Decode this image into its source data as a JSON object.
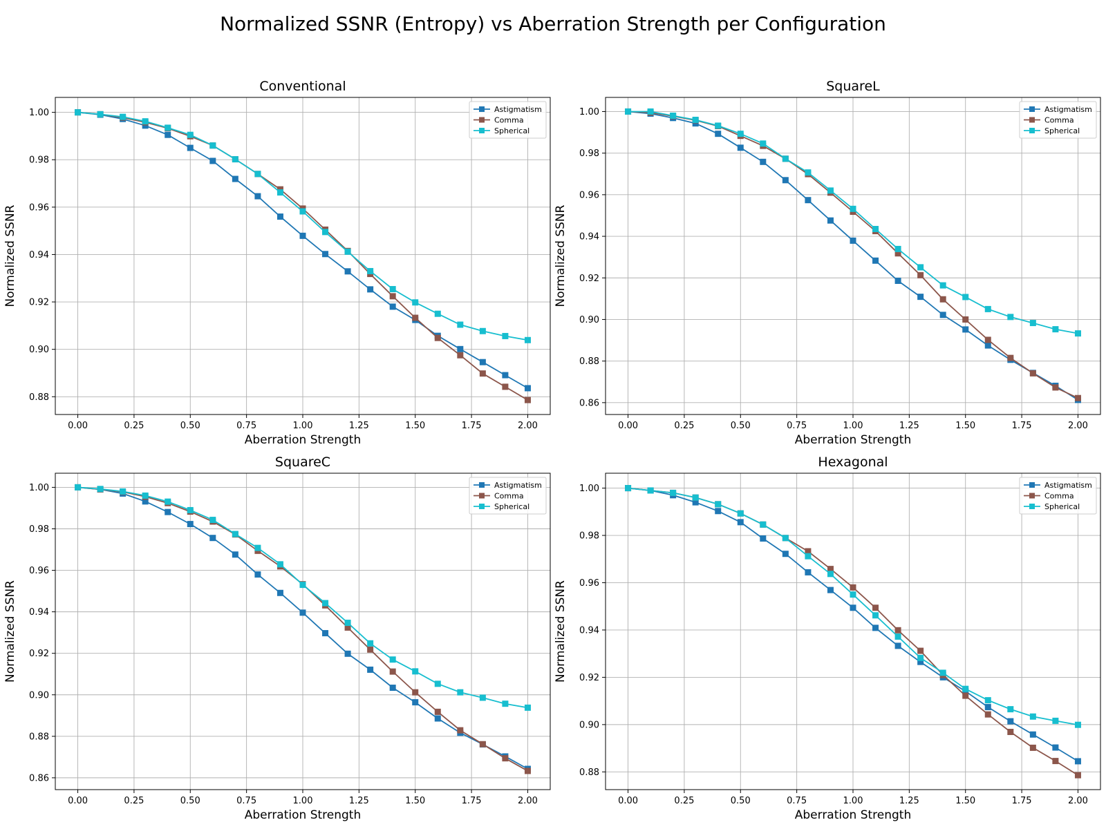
{
  "figure": {
    "title": "Normalized SSNR (Entropy) vs Aberration Strength per Configuration"
  },
  "colors": {
    "Astigmatism": "#1f77b4",
    "Comma": "#8c564b",
    "Spherical": "#17becf",
    "grid": "#b0b0b0"
  },
  "chart_data": [
    {
      "type": "line",
      "title": "Conventional",
      "xlabel": "Aberration Strength",
      "ylabel": "Normalized SSNR",
      "xlim": [
        -0.1,
        2.1
      ],
      "ylim": [
        0.8725,
        1.0063
      ],
      "xticks": [
        "0.00",
        "0.25",
        "0.50",
        "0.75",
        "1.00",
        "1.25",
        "1.50",
        "1.75",
        "2.00"
      ],
      "yticks": [
        "0.88",
        "0.90",
        "0.92",
        "0.94",
        "0.96",
        "0.98",
        "1.00"
      ],
      "grid": true,
      "legend": "upper right",
      "x": [
        0.0,
        0.1,
        0.2,
        0.3,
        0.4,
        0.5,
        0.6,
        0.7,
        0.8,
        0.9,
        1.0,
        1.1,
        1.2,
        1.3,
        1.4,
        1.5,
        1.6,
        1.7,
        1.8,
        1.9,
        2.0
      ],
      "series": [
        {
          "name": "Astigmatism",
          "values": [
            1.0,
            0.999,
            0.9972,
            0.9944,
            0.9905,
            0.985,
            0.9795,
            0.9719,
            0.9646,
            0.956,
            0.9479,
            0.9402,
            0.9329,
            0.9253,
            0.918,
            0.9124,
            0.9057,
            0.9001,
            0.8946,
            0.8891,
            0.8836
          ]
        },
        {
          "name": "Comma",
          "values": [
            1.0,
            0.9992,
            0.9978,
            0.9958,
            0.9933,
            0.9899,
            0.986,
            0.9802,
            0.974,
            0.9675,
            0.9594,
            0.9505,
            0.9415,
            0.9318,
            0.9224,
            0.9133,
            0.9048,
            0.8975,
            0.8898,
            0.8842,
            0.8786
          ]
        },
        {
          "name": "Spherical",
          "values": [
            1.0,
            0.9992,
            0.9981,
            0.9962,
            0.9935,
            0.9905,
            0.986,
            0.9802,
            0.974,
            0.9662,
            0.9582,
            0.9495,
            0.9412,
            0.933,
            0.9254,
            0.9198,
            0.915,
            0.9104,
            0.9077,
            0.9056,
            0.9039
          ]
        }
      ]
    },
    {
      "type": "line",
      "title": "SquareL",
      "xlabel": "Aberration Strength",
      "ylabel": "Normalized SSNR",
      "xlim": [
        -0.1,
        2.1
      ],
      "ylim": [
        0.8543,
        1.0068
      ],
      "xticks": [
        "0.00",
        "0.25",
        "0.50",
        "0.75",
        "1.00",
        "1.25",
        "1.50",
        "1.75",
        "2.00"
      ],
      "yticks": [
        "0.86",
        "0.88",
        "0.90",
        "0.92",
        "0.94",
        "0.96",
        "0.98",
        "1.00"
      ],
      "grid": true,
      "legend": "upper right",
      "x": [
        0.0,
        0.1,
        0.2,
        0.3,
        0.4,
        0.5,
        0.6,
        0.7,
        0.8,
        0.9,
        1.0,
        1.1,
        1.2,
        1.3,
        1.4,
        1.5,
        1.6,
        1.7,
        1.8,
        1.9,
        2.0
      ],
      "series": [
        {
          "name": "Astigmatism",
          "values": [
            1.0,
            0.999,
            0.9969,
            0.9943,
            0.9893,
            0.9826,
            0.9758,
            0.967,
            0.9574,
            0.9476,
            0.9379,
            0.9283,
            0.9186,
            0.9109,
            0.9022,
            0.8952,
            0.8875,
            0.8806,
            0.8743,
            0.8681,
            0.8613
          ]
        },
        {
          "name": "Comma",
          "values": [
            1.0,
            0.9995,
            0.9978,
            0.9958,
            0.993,
            0.9883,
            0.9835,
            0.9773,
            0.9699,
            0.961,
            0.9518,
            0.9425,
            0.9318,
            0.9213,
            0.9097,
            0.9,
            0.8902,
            0.8815,
            0.8741,
            0.8673,
            0.8622
          ]
        },
        {
          "name": "Spherical",
          "values": [
            1.0,
            1.0,
            0.998,
            0.996,
            0.9932,
            0.9893,
            0.9846,
            0.9773,
            0.9707,
            0.962,
            0.9532,
            0.9435,
            0.9339,
            0.9251,
            0.9164,
            0.9108,
            0.905,
            0.9012,
            0.8983,
            0.8953,
            0.8933
          ]
        }
      ]
    },
    {
      "type": "line",
      "title": "SquareC",
      "xlabel": "Aberration Strength",
      "ylabel": "Normalized SSNR",
      "xlim": [
        -0.1,
        2.1
      ],
      "ylim": [
        0.8543,
        1.0068
      ],
      "xticks": [
        "0.00",
        "0.25",
        "0.50",
        "0.75",
        "1.00",
        "1.25",
        "1.50",
        "1.75",
        "2.00"
      ],
      "yticks": [
        "0.86",
        "0.88",
        "0.90",
        "0.92",
        "0.94",
        "0.96",
        "0.98",
        "1.00"
      ],
      "grid": true,
      "legend": "upper right",
      "x": [
        0.0,
        0.1,
        0.2,
        0.3,
        0.4,
        0.5,
        0.6,
        0.7,
        0.8,
        0.9,
        1.0,
        1.1,
        1.2,
        1.3,
        1.4,
        1.5,
        1.6,
        1.7,
        1.8,
        1.9,
        2.0
      ],
      "series": [
        {
          "name": "Astigmatism",
          "values": [
            1.0,
            0.999,
            0.997,
            0.9932,
            0.9881,
            0.9823,
            0.9756,
            0.9676,
            0.958,
            0.9491,
            0.9396,
            0.9297,
            0.9198,
            0.9121,
            0.9034,
            0.8964,
            0.8886,
            0.8817,
            0.8761,
            0.8703,
            0.8643
          ]
        },
        {
          "name": "Comma",
          "values": [
            1.0,
            0.999,
            0.9978,
            0.9955,
            0.9924,
            0.9883,
            0.9835,
            0.9773,
            0.9694,
            0.9619,
            0.9533,
            0.9431,
            0.9324,
            0.9218,
            0.9112,
            0.9012,
            0.8918,
            0.8829,
            0.8762,
            0.8694,
            0.8633
          ]
        },
        {
          "name": "Spherical",
          "values": [
            1.0,
            0.9992,
            0.998,
            0.996,
            0.9931,
            0.989,
            0.9843,
            0.9775,
            0.9708,
            0.9629,
            0.953,
            0.9442,
            0.9347,
            0.9248,
            0.917,
            0.9113,
            0.9053,
            0.9012,
            0.8986,
            0.8957,
            0.8938
          ]
        }
      ]
    },
    {
      "type": "line",
      "title": "Hexagonal",
      "xlabel": "Aberration Strength",
      "ylabel": "Normalized SSNR",
      "xlim": [
        -0.1,
        2.1
      ],
      "ylim": [
        0.8725,
        1.0063
      ],
      "xticks": [
        "0.00",
        "0.25",
        "0.50",
        "0.75",
        "1.00",
        "1.25",
        "1.50",
        "1.75",
        "2.00"
      ],
      "yticks": [
        "0.88",
        "0.90",
        "0.92",
        "0.94",
        "0.96",
        "0.98",
        "1.00"
      ],
      "grid": true,
      "legend": "upper right",
      "x": [
        0.0,
        0.1,
        0.2,
        0.3,
        0.4,
        0.5,
        0.6,
        0.7,
        0.8,
        0.9,
        1.0,
        1.1,
        1.2,
        1.3,
        1.4,
        1.5,
        1.6,
        1.7,
        1.8,
        1.9,
        2.0
      ],
      "series": [
        {
          "name": "Astigmatism",
          "values": [
            1.0,
            0.999,
            0.997,
            0.994,
            0.9903,
            0.9856,
            0.9787,
            0.9722,
            0.9644,
            0.9569,
            0.9494,
            0.9409,
            0.9333,
            0.9265,
            0.92,
            0.9141,
            0.9074,
            0.9014,
            0.8958,
            0.8903,
            0.8845
          ]
        },
        {
          "name": "Comma",
          "values": [
            1.0,
            0.999,
            0.998,
            0.996,
            0.9932,
            0.9893,
            0.9846,
            0.9789,
            0.9733,
            0.9658,
            0.958,
            0.9494,
            0.9399,
            0.9312,
            0.921,
            0.9122,
            0.9043,
            0.8969,
            0.8902,
            0.8846,
            0.8786
          ]
        },
        {
          "name": "Spherical",
          "values": [
            1.0,
            0.999,
            0.998,
            0.996,
            0.9932,
            0.9893,
            0.9846,
            0.9789,
            0.9712,
            0.9637,
            0.955,
            0.9462,
            0.9372,
            0.9282,
            0.9219,
            0.9151,
            0.9103,
            0.9065,
            0.9034,
            0.9016,
            0.8999
          ]
        }
      ]
    }
  ]
}
